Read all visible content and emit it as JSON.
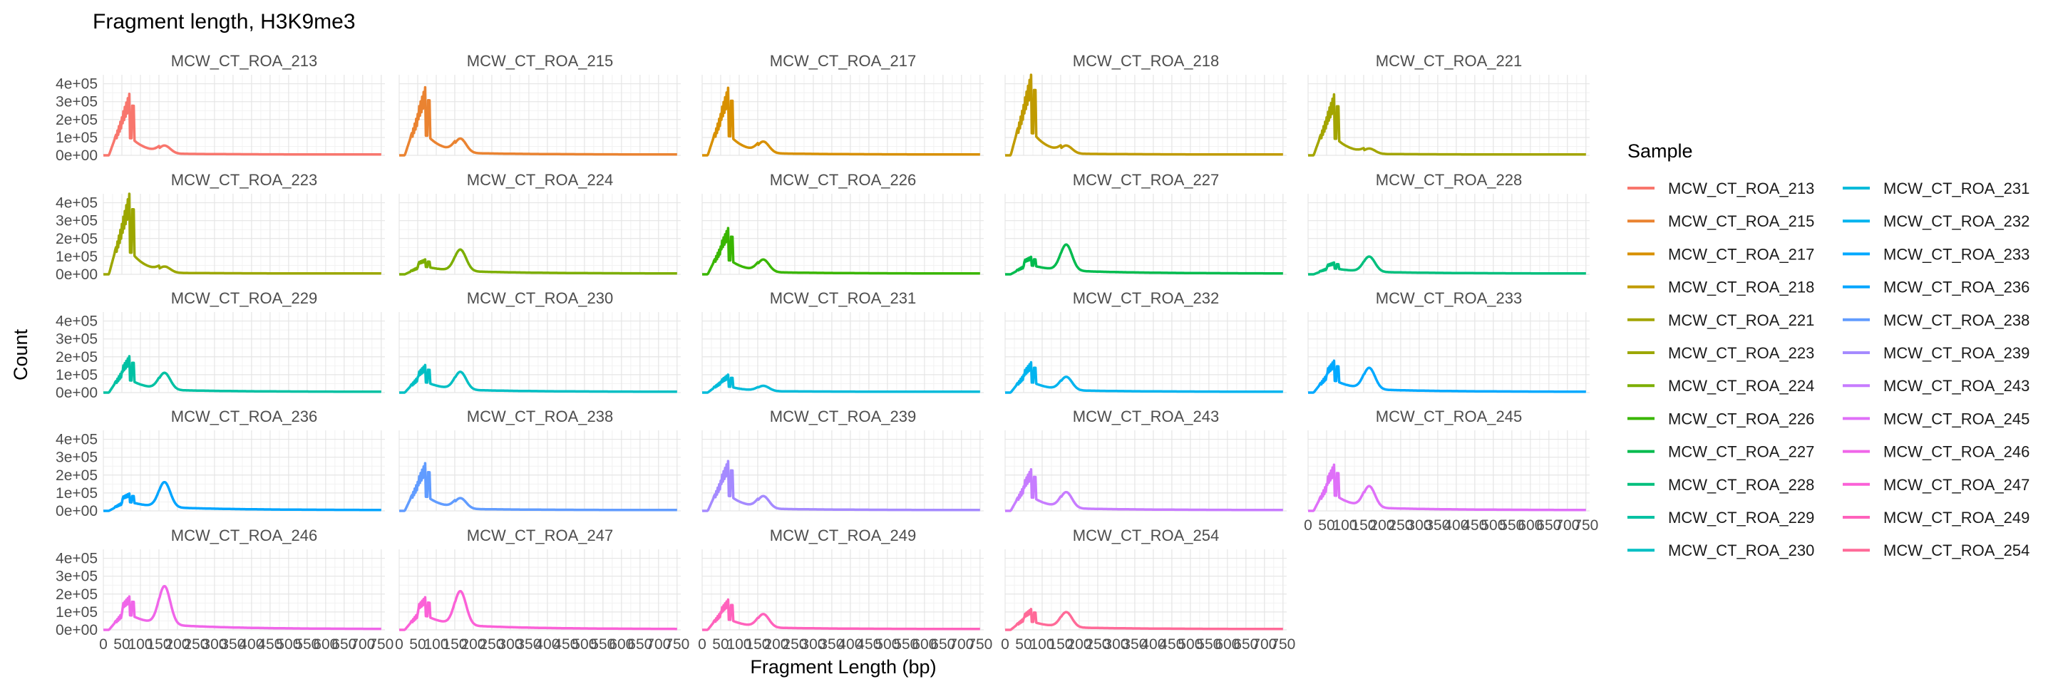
{
  "chart_data": {
    "type": "line",
    "title": "Fragment length, H3K9me3",
    "xlabel": "Fragment Length (bp)",
    "ylabel": "Count",
    "xlim": [
      0,
      760
    ],
    "ylim": [
      0,
      450000
    ],
    "x_ticks": [
      "0",
      "50",
      "100",
      "150",
      "200",
      "250",
      "300",
      "350",
      "400",
      "450",
      "500",
      "550",
      "600",
      "650",
      "700",
      "750"
    ],
    "y_ticks": [
      "0e+00",
      "1e+05",
      "2e+05",
      "3e+05",
      "4e+05"
    ],
    "grid": true,
    "facet_layout": {
      "rows": 5,
      "cols": 5
    },
    "legend": {
      "title": "Sample",
      "position": "right",
      "columns": 2
    },
    "series": [
      {
        "name": "MCW_CT_ROA_213",
        "color": "#F8766D",
        "peak1": 330000,
        "peak2": 45000
      },
      {
        "name": "MCW_CT_ROA_215",
        "color": "#EA8331",
        "peak1": 360000,
        "peak2": 80000
      },
      {
        "name": "MCW_CT_ROA_217",
        "color": "#D89000",
        "peak1": 360000,
        "peak2": 65000
      },
      {
        "name": "MCW_CT_ROA_218",
        "color": "#C09B00",
        "peak1": 440000,
        "peak2": 45000
      },
      {
        "name": "MCW_CT_ROA_221",
        "color": "#A3A500",
        "peak1": 330000,
        "peak2": 30000
      },
      {
        "name": "MCW_CT_ROA_223",
        "color": "#9CA700",
        "peak1": 440000,
        "peak2": 35000
      },
      {
        "name": "MCW_CT_ROA_224",
        "color": "#7CAE00",
        "peak1": 55000,
        "peak2": 120000
      },
      {
        "name": "MCW_CT_ROA_226",
        "color": "#39B600",
        "peak1": 240000,
        "peak2": 70000
      },
      {
        "name": "MCW_CT_ROA_227",
        "color": "#00BB4E",
        "peak1": 65000,
        "peak2": 145000
      },
      {
        "name": "MCW_CT_ROA_228",
        "color": "#00BF7D",
        "peak1": 45000,
        "peak2": 85000
      },
      {
        "name": "MCW_CT_ROA_229",
        "color": "#00C1A3",
        "peak1": 180000,
        "peak2": 95000
      },
      {
        "name": "MCW_CT_ROA_230",
        "color": "#00BFC4",
        "peak1": 130000,
        "peak2": 100000
      },
      {
        "name": "MCW_CT_ROA_231",
        "color": "#00BBDA",
        "peak1": 90000,
        "peak2": 30000
      },
      {
        "name": "MCW_CT_ROA_232",
        "color": "#00B4EF",
        "peak1": 150000,
        "peak2": 75000
      },
      {
        "name": "MCW_CT_ROA_233",
        "color": "#00A9FF",
        "peak1": 150000,
        "peak2": 120000
      },
      {
        "name": "MCW_CT_ROA_236",
        "color": "#00A5FF",
        "peak1": 65000,
        "peak2": 140000
      },
      {
        "name": "MCW_CT_ROA_238",
        "color": "#619CFF",
        "peak1": 250000,
        "peak2": 60000
      },
      {
        "name": "MCW_CT_ROA_239",
        "color": "#A58AFF",
        "peak1": 260000,
        "peak2": 70000
      },
      {
        "name": "MCW_CT_ROA_243",
        "color": "#C77CFF",
        "peak1": 210000,
        "peak2": 90000
      },
      {
        "name": "MCW_CT_ROA_245",
        "color": "#DF70F8",
        "peak1": 230000,
        "peak2": 120000
      },
      {
        "name": "MCW_CT_ROA_246",
        "color": "#F066E9",
        "peak1": 140000,
        "peak2": 215000
      },
      {
        "name": "MCW_CT_ROA_247",
        "color": "#FB61D7",
        "peak1": 140000,
        "peak2": 190000
      },
      {
        "name": "MCW_CT_ROA_249",
        "color": "#FF62BC",
        "peak1": 150000,
        "peak2": 75000
      },
      {
        "name": "MCW_CT_ROA_254",
        "color": "#FF6A98",
        "peak1": 95000,
        "peak2": 85000
      }
    ]
  }
}
